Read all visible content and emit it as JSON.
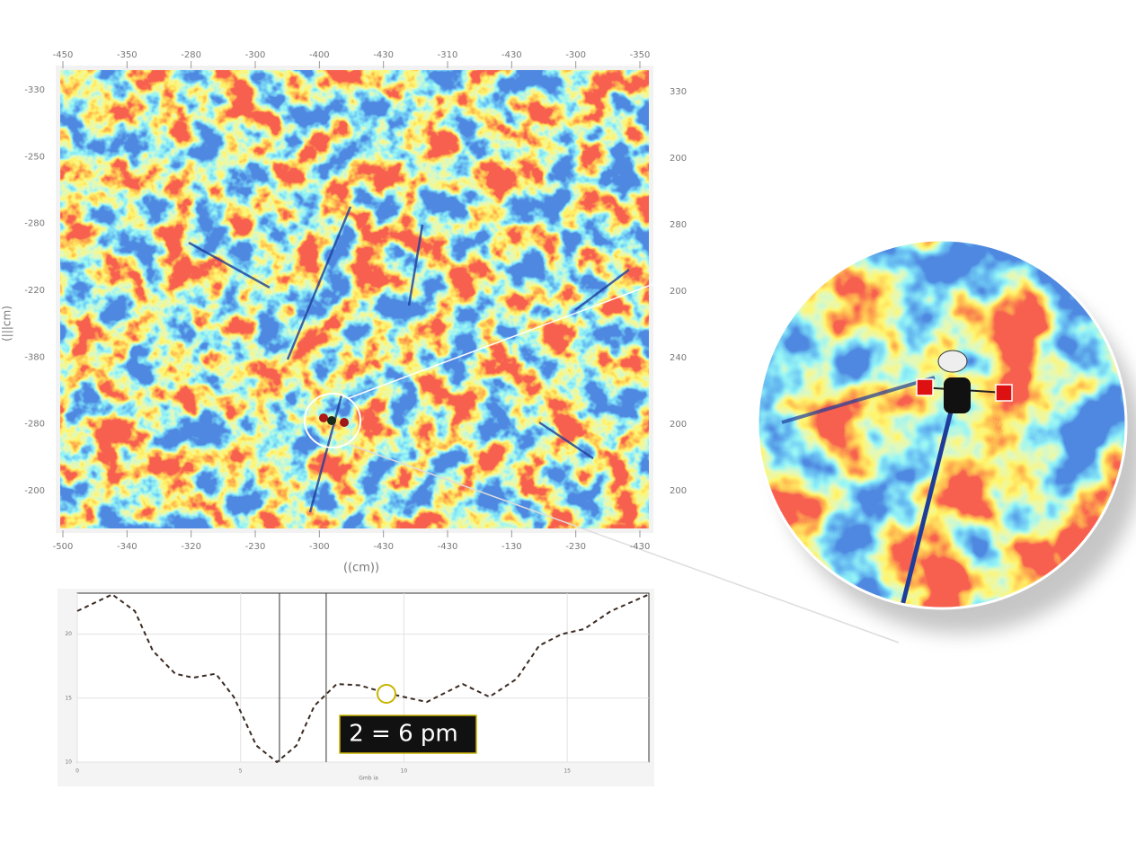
{
  "image_panel": {
    "top_labels": [
      "-450",
      "-350",
      "-280",
      "-300",
      "-400",
      "-430",
      "-310",
      "-430",
      "-300",
      "-350"
    ],
    "bottom_labels": [
      "-500",
      "-340",
      "-320",
      "-230",
      "-300",
      "-430",
      "-430",
      "-130",
      "-230",
      "-430"
    ],
    "left_labels": [
      "-330",
      "-250",
      "-280",
      "-220",
      "-380",
      "-280",
      "-200"
    ],
    "right_labels": [
      "330",
      "200",
      "280",
      "200",
      "240",
      "200",
      "200"
    ],
    "xlabel": "((cm))",
    "ylabel": "(|||cm)"
  },
  "chart_data": {
    "type": "line",
    "xlabel": "Gmb ia",
    "annotation": "2 = 6 pm",
    "x": [
      0,
      1.07,
      1.76,
      2.31,
      3.0,
      3.55,
      4.24,
      4.79,
      5.48,
      6.11,
      6.71,
      7.26,
      7.94,
      8.64,
      9.46,
      10.7,
      11.8,
      12.62,
      13.45,
      14.14,
      14.83,
      15.52,
      16.34,
      17.5
    ],
    "series": [
      {
        "color": "#3a2a22",
        "values": [
          21.8,
          23.1,
          21.8,
          18.7,
          16.9,
          16.6,
          16.9,
          15.1,
          11.3,
          10.0,
          11.3,
          14.4,
          16.1,
          16.0,
          15.4,
          14.7,
          16.1,
          15.1,
          16.5,
          19.1,
          20.0,
          20.4,
          21.8,
          23.1
        ]
      }
    ],
    "markers": [
      6.19,
      7.62
    ],
    "xlim": [
      0,
      17.5
    ],
    "ylim": [
      10,
      23.2
    ],
    "xticks": [
      0,
      5,
      10,
      15
    ],
    "yticks": [
      10,
      15,
      20
    ],
    "grid": true
  }
}
